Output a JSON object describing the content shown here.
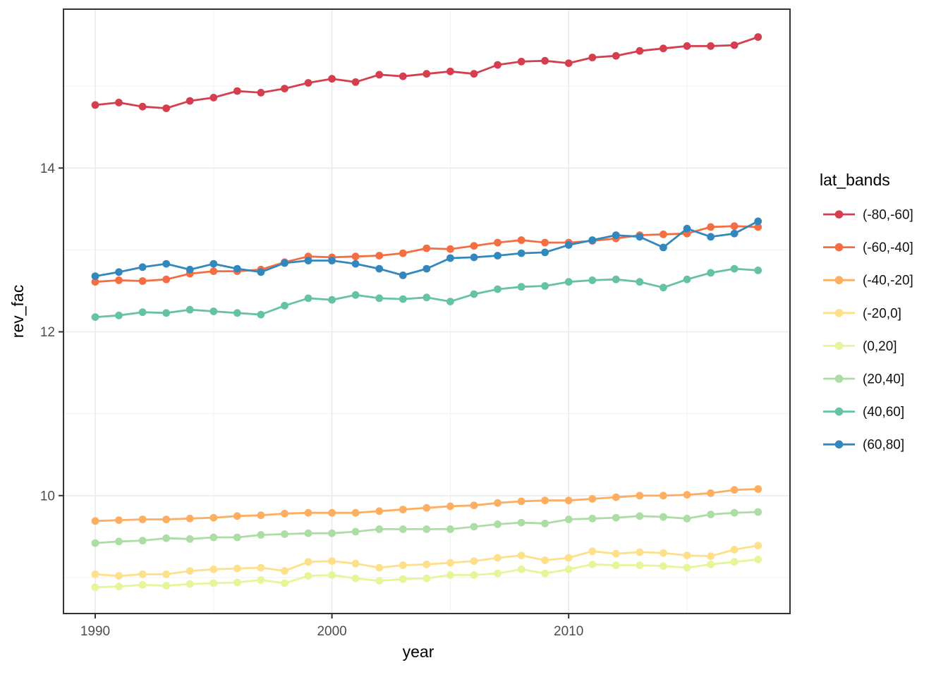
{
  "chart_data": {
    "type": "line",
    "title": "",
    "xlabel": "year",
    "ylabel": "rev_fac",
    "legend_title": "lat_bands",
    "legend_position": "right",
    "grid": true,
    "x_ticks": [
      1990,
      2000,
      2010
    ],
    "x_minor_ticks": [
      1995,
      2005,
      2015
    ],
    "y_ticks": [
      10,
      12,
      14
    ],
    "y_minor_ticks": [
      9,
      11,
      13,
      15
    ],
    "xlim": [
      1988.66,
      2019.35
    ],
    "ylim": [
      8.56,
      15.94
    ],
    "x": [
      1990,
      1991,
      1992,
      1993,
      1994,
      1995,
      1996,
      1997,
      1998,
      1999,
      2000,
      2001,
      2002,
      2003,
      2004,
      2005,
      2006,
      2007,
      2008,
      2009,
      2010,
      2011,
      2012,
      2013,
      2014,
      2015,
      2016,
      2017,
      2018
    ],
    "series": [
      {
        "name": "(-80,-60]",
        "color": "#D53E4F",
        "values": [
          14.77,
          14.8,
          14.75,
          14.73,
          14.82,
          14.86,
          14.94,
          14.92,
          14.97,
          15.04,
          15.09,
          15.05,
          15.14,
          15.12,
          15.15,
          15.18,
          15.15,
          15.26,
          15.3,
          15.31,
          15.28,
          15.35,
          15.37,
          15.43,
          15.46,
          15.49,
          15.49,
          15.5,
          15.6
        ]
      },
      {
        "name": "(-60,-40]",
        "color": "#F46D43",
        "values": [
          12.61,
          12.63,
          12.62,
          12.64,
          12.71,
          12.74,
          12.74,
          12.76,
          12.85,
          12.92,
          12.91,
          12.92,
          12.93,
          12.96,
          13.02,
          13.01,
          13.05,
          13.09,
          13.12,
          13.09,
          13.09,
          13.11,
          13.14,
          13.18,
          13.19,
          13.2,
          13.28,
          13.29,
          13.28
        ]
      },
      {
        "name": "(-40,-20]",
        "color": "#FDAE61",
        "values": [
          9.69,
          9.7,
          9.71,
          9.71,
          9.72,
          9.73,
          9.75,
          9.76,
          9.78,
          9.79,
          9.79,
          9.79,
          9.81,
          9.83,
          9.85,
          9.87,
          9.88,
          9.91,
          9.93,
          9.94,
          9.94,
          9.96,
          9.98,
          10.0,
          10.0,
          10.01,
          10.03,
          10.07,
          10.08
        ]
      },
      {
        "name": "(-20,0]",
        "color": "#FEE08B",
        "values": [
          9.04,
          9.02,
          9.04,
          9.04,
          9.08,
          9.1,
          9.11,
          9.12,
          9.08,
          9.19,
          9.2,
          9.17,
          9.12,
          9.15,
          9.16,
          9.18,
          9.2,
          9.24,
          9.27,
          9.21,
          9.24,
          9.32,
          9.29,
          9.31,
          9.3,
          9.27,
          9.26,
          9.34,
          9.39
        ]
      },
      {
        "name": "(0,20]",
        "color": "#E6F598",
        "values": [
          8.88,
          8.89,
          8.91,
          8.9,
          8.92,
          8.93,
          8.94,
          8.97,
          8.93,
          9.02,
          9.03,
          8.99,
          8.96,
          8.98,
          8.99,
          9.03,
          9.03,
          9.05,
          9.1,
          9.05,
          9.1,
          9.16,
          9.15,
          9.15,
          9.14,
          9.12,
          9.16,
          9.19,
          9.22
        ]
      },
      {
        "name": "(20,40]",
        "color": "#ABDDA4",
        "values": [
          9.42,
          9.44,
          9.45,
          9.48,
          9.47,
          9.49,
          9.49,
          9.52,
          9.53,
          9.54,
          9.54,
          9.56,
          9.59,
          9.59,
          9.59,
          9.59,
          9.62,
          9.65,
          9.67,
          9.66,
          9.71,
          9.72,
          9.73,
          9.75,
          9.74,
          9.72,
          9.77,
          9.79,
          9.8
        ]
      },
      {
        "name": "(40,60]",
        "color": "#66C2A5",
        "values": [
          12.18,
          12.2,
          12.24,
          12.23,
          12.27,
          12.25,
          12.23,
          12.21,
          12.32,
          12.41,
          12.39,
          12.45,
          12.41,
          12.4,
          12.42,
          12.37,
          12.46,
          12.52,
          12.55,
          12.56,
          12.61,
          12.63,
          12.64,
          12.61,
          12.54,
          12.64,
          12.72,
          12.77,
          12.75
        ]
      },
      {
        "name": "(60,80]",
        "color": "#3288BD",
        "values": [
          12.68,
          12.73,
          12.79,
          12.83,
          12.76,
          12.83,
          12.77,
          12.73,
          12.84,
          12.87,
          12.87,
          12.83,
          12.77,
          12.69,
          12.77,
          12.9,
          12.91,
          12.93,
          12.96,
          12.97,
          13.06,
          13.12,
          13.18,
          13.16,
          13.03,
          13.26,
          13.16,
          13.2,
          13.35
        ]
      }
    ]
  },
  "style_colors": {
    "panel_border": "#333333",
    "grid_major": "#ebebeb",
    "grid_minor": "#f1f1f1",
    "tick_mark": "#333333",
    "tick_text": "#4d4d4d",
    "background": "#ffffff"
  }
}
